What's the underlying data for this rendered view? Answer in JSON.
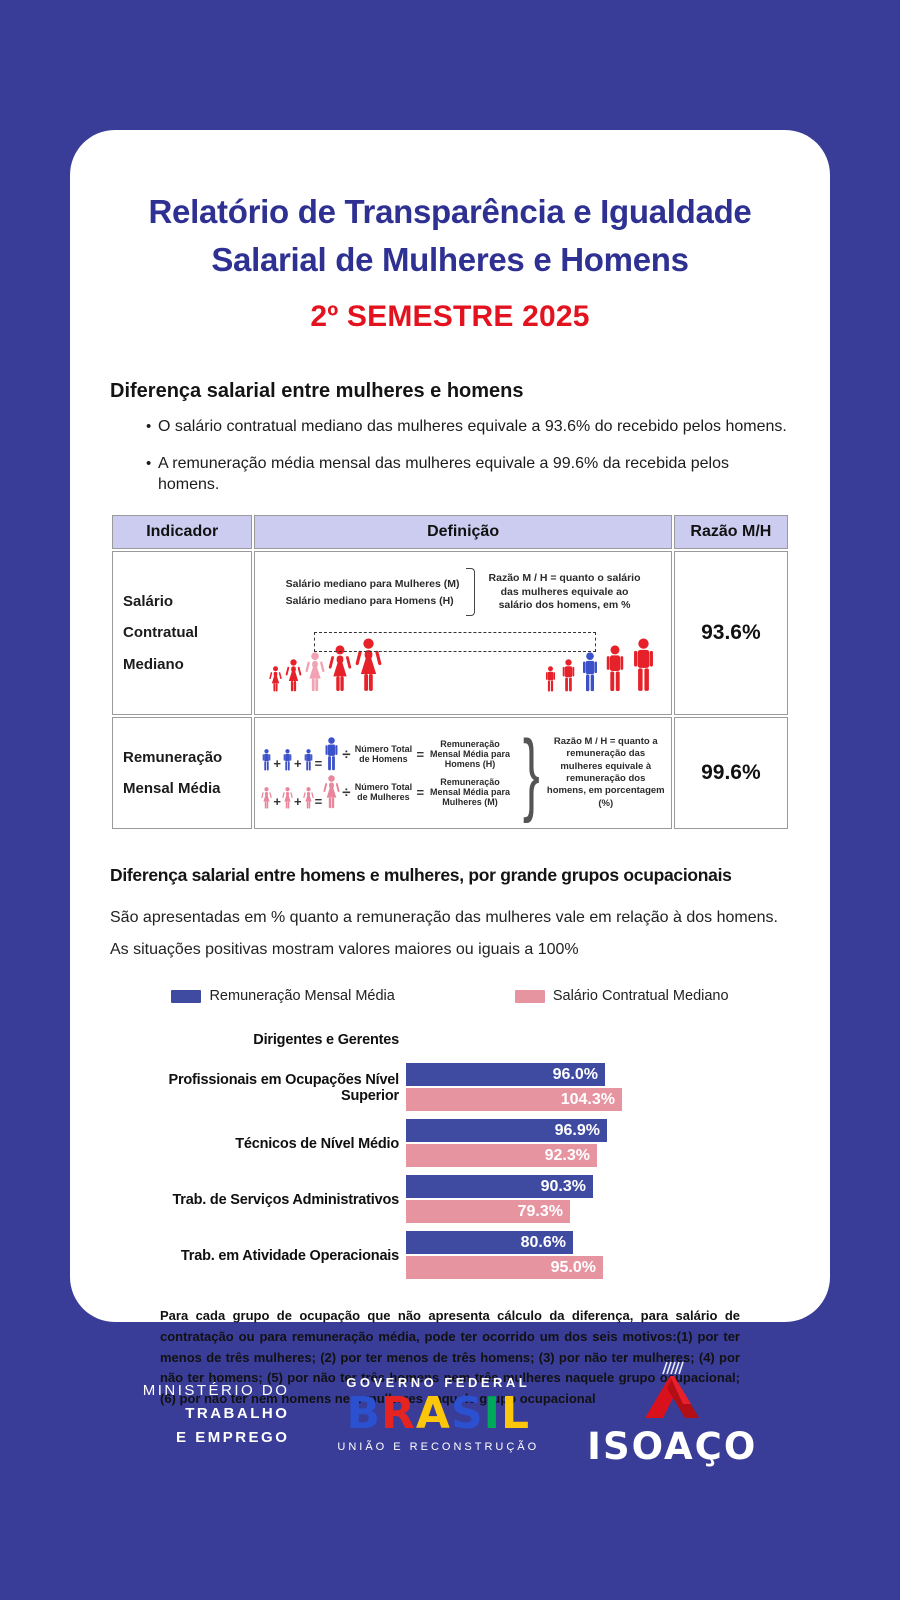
{
  "header": {
    "title_line1": "Relatório de Transparência e Igualdade",
    "title_line2": "Salarial de Mulheres e Homens",
    "subtitle": "2º SEMESTRE 2025"
  },
  "section1": {
    "heading": "Diferença salarial entre mulheres e homens",
    "bullets": [
      "O salário contratual mediano das mulheres equivale a 93.6% do recebido pelos homens.",
      "A remuneração média mensal das mulheres equivale a 99.6% da recebida pelos homens."
    ]
  },
  "table": {
    "headers": [
      "Indicador",
      "Definição",
      "Razão M/H"
    ],
    "rows": [
      {
        "indicator": "Salário Contratual Mediano",
        "ratio": "93.6%",
        "diagram": {
          "line1": "Salário mediano para Mulheres (M)",
          "line2": "Salário mediano para Homens (H)",
          "note": "Razão M / H = quanto o salário das mulheres equivale ao salário dos homens, em %"
        }
      },
      {
        "indicator": "Remuneração Mensal Média",
        "ratio": "99.6%",
        "diagram": {
          "men_divisor": "Número Total de Homens",
          "men_result": "Remuneração Mensal Média para Homens (H)",
          "women_divisor": "Número Total de Mulheres",
          "women_result": "Remuneração Mensal Média para Mulheres (M)",
          "note": "Razão M / H = quanto a remuneração das mulheres equivale à remuneração dos homens, em porcentagem (%)"
        }
      }
    ]
  },
  "section2": {
    "heading": "Diferença salarial entre homens e mulheres, por grande grupos ocupacionais",
    "description": "São apresentadas em % quanto a remuneração das mulheres vale em relação à dos homens. As situações positivas mostram valores maiores ou iguais a 100%",
    "footnote": "Para cada grupo de ocupação que não apresenta cálculo da diferença, para salário de contratação ou para remuneração média, pode ter ocorrido um dos seis motivos:(1) por ter menos de três mulheres; (2) por ter menos de três homens; (3) por não ter mulheres; (4) por não ter homens; (5) por não ter três homens nem três mulheres naquele grupo ocupacional; (6) por não ter nem homens nem mulheres naquele grupo ocupacional"
  },
  "chart_data": {
    "type": "bar",
    "orientation": "horizontal",
    "title": "Diferença salarial entre homens e mulheres, por grande grupos ocupacionais",
    "value_unit": "%",
    "categories": [
      "Dirigentes e Gerentes",
      "Profissionais em Ocupações Nível Superior",
      "Técnicos de Nível Médio",
      "Trab. de Serviços Administrativos",
      "Trab. em Atividade Operacionais"
    ],
    "series": [
      {
        "name": "Remuneração Mensal Média",
        "color": "#3f4ba0",
        "values": [
          null,
          96.0,
          96.9,
          90.3,
          80.6
        ]
      },
      {
        "name": "Salário Contratual Mediano",
        "color": "#e794a1",
        "values": [
          null,
          104.3,
          92.3,
          79.3,
          95.0
        ]
      }
    ],
    "legend_position": "top",
    "value_labels": "inside-end"
  },
  "colors": {
    "background": "#3a3d98",
    "title_navy": "#2e3192",
    "subtitle_red": "#e2131e",
    "table_header_bg": "#ccccf0",
    "figure_red": "#e62129",
    "figure_pink": "#f2a3b3",
    "figure_blue": "#3b51c9"
  },
  "footer": {
    "ministry_line1": "MINISTÉRIO DO",
    "ministry_line2": "TRABALHO",
    "ministry_line3": "E EMPREGO",
    "governo_federal": "GOVERNO FEDERAL",
    "brasil_letters": [
      {
        "ch": "B",
        "color": "#2b50d0"
      },
      {
        "ch": "R",
        "color": "#e52320"
      },
      {
        "ch": "A",
        "color": "#fcc60b"
      },
      {
        "ch": "S",
        "color": "#2b50d0"
      },
      {
        "ch": "I",
        "color": "#00a859"
      },
      {
        "ch": "L",
        "color": "#fcc60b"
      }
    ],
    "uniao": "UNIÃO E RECONSTRUÇÃO",
    "company": "ISOAÇO"
  }
}
